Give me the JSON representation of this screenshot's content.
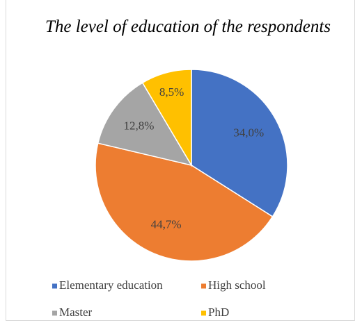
{
  "chart_data": {
    "type": "pie",
    "title": "The level of education of the respondents",
    "categories": [
      "Elementary education",
      "High school",
      "Master",
      "PhD"
    ],
    "values": [
      34.0,
      44.7,
      12.8,
      8.5
    ],
    "value_labels": [
      "34,0%",
      "44,7%",
      "12,8%",
      "8,5%"
    ],
    "colors": [
      "#4472c4",
      "#ed7d31",
      "#a5a5a5",
      "#ffc000"
    ],
    "legend": "bottom"
  }
}
